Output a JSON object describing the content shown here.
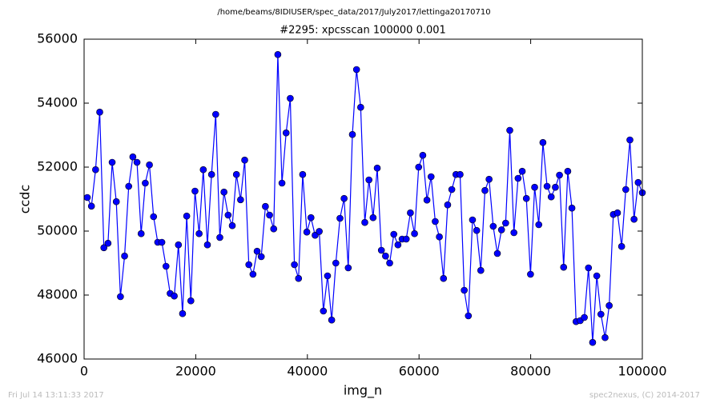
{
  "chart_data": {
    "type": "line",
    "suptitle": "/home/beams/8IDIUSER/spec_data/2017/July2017/lettinga20170710",
    "title": "#2295: xpcsscan 100000 0.001",
    "xlabel": "img_n",
    "ylabel": "ccdc",
    "footer_left": "Fri Jul 14 13:11:33 2017",
    "footer_right": "spec2nexus, (C) 2014-2017",
    "xlim": [
      0,
      100000
    ],
    "xticks": [
      0,
      20000,
      40000,
      60000,
      80000,
      100000
    ],
    "ylim": [
      46000,
      56000
    ],
    "yticks": [
      46000,
      48000,
      50000,
      52000,
      54000,
      56000
    ],
    "grid": false,
    "x": [
      574,
      1316,
      2058,
      2800,
      3542,
      4284,
      5026,
      5768,
      6510,
      7252,
      7994,
      8736,
      9478,
      10220,
      10962,
      11704,
      12446,
      13188,
      13930,
      14672,
      15414,
      16156,
      16898,
      17640,
      18382,
      19124,
      19866,
      20608,
      21350,
      22092,
      22834,
      23576,
      24318,
      25060,
      25802,
      26544,
      27286,
      28028,
      28770,
      29512,
      30254,
      30996,
      31738,
      32480,
      33222,
      33964,
      34706,
      35448,
      36190,
      36932,
      37674,
      38416,
      39158,
      39900,
      40642,
      41384,
      42126,
      42868,
      43610,
      44352,
      45094,
      45836,
      46578,
      47320,
      48062,
      48804,
      49546,
      50288,
      51030,
      51772,
      52514,
      53256,
      53998,
      54740,
      55482,
      56224,
      56966,
      57708,
      58450,
      59192,
      59934,
      60676,
      61418,
      62160,
      62902,
      63644,
      64386,
      65128,
      65870,
      66612,
      67354,
      68096,
      68838,
      69580,
      70322,
      71064,
      71806,
      72548,
      73290,
      74032,
      74774,
      75516,
      76258,
      77000,
      77742,
      78484,
      79226,
      79968,
      80710,
      81452,
      82194,
      82936,
      83678,
      84420,
      85162,
      85904,
      86646,
      87388,
      88130,
      88872,
      89614,
      90356,
      91098,
      91840,
      92582,
      93324,
      94066,
      94808,
      95550,
      96292,
      97034,
      97776,
      98518,
      99260,
      100000
    ],
    "series": [
      {
        "name": "ccdc",
        "color": "#0000ff",
        "values": [
          51050,
          50780,
          51920,
          53720,
          49480,
          49620,
          52150,
          50920,
          47950,
          49220,
          51400,
          52320,
          52150,
          49920,
          51500,
          52070,
          50450,
          49650,
          49650,
          48900,
          48050,
          47970,
          49570,
          47420,
          50470,
          47820,
          51250,
          49920,
          51920,
          49570,
          51770,
          53650,
          49800,
          51220,
          50500,
          50170,
          51770,
          50980,
          52220,
          48950,
          48650,
          49370,
          49200,
          50770,
          50500,
          50070,
          55520,
          51500,
          53070,
          54150,
          48950,
          48520,
          51770,
          49970,
          50420,
          49870,
          49990,
          47500,
          48600,
          47220,
          49000,
          50400,
          51020,
          48850,
          53020,
          55050,
          53870,
          50270,
          51600,
          50420,
          51970,
          49400,
          49220,
          49000,
          49900,
          49570,
          49750,
          49750,
          50570,
          49920,
          52000,
          52370,
          50970,
          51700,
          50300,
          49820,
          48520,
          50820,
          51300,
          51770,
          51770,
          48150,
          47350,
          50350,
          50020,
          48770,
          51270,
          51620,
          50150,
          49300,
          50040,
          50250,
          53150,
          49950,
          51650,
          51870,
          51020,
          48650,
          51370,
          50200,
          52770,
          51400,
          51070,
          51370,
          51750,
          48870,
          51870,
          50720,
          47170,
          47200,
          47300,
          48850,
          46520,
          48600,
          47400,
          46670,
          47670,
          50520,
          50570,
          49520,
          51300,
          52850,
          50370,
          51520,
          51200
        ]
      }
    ]
  }
}
